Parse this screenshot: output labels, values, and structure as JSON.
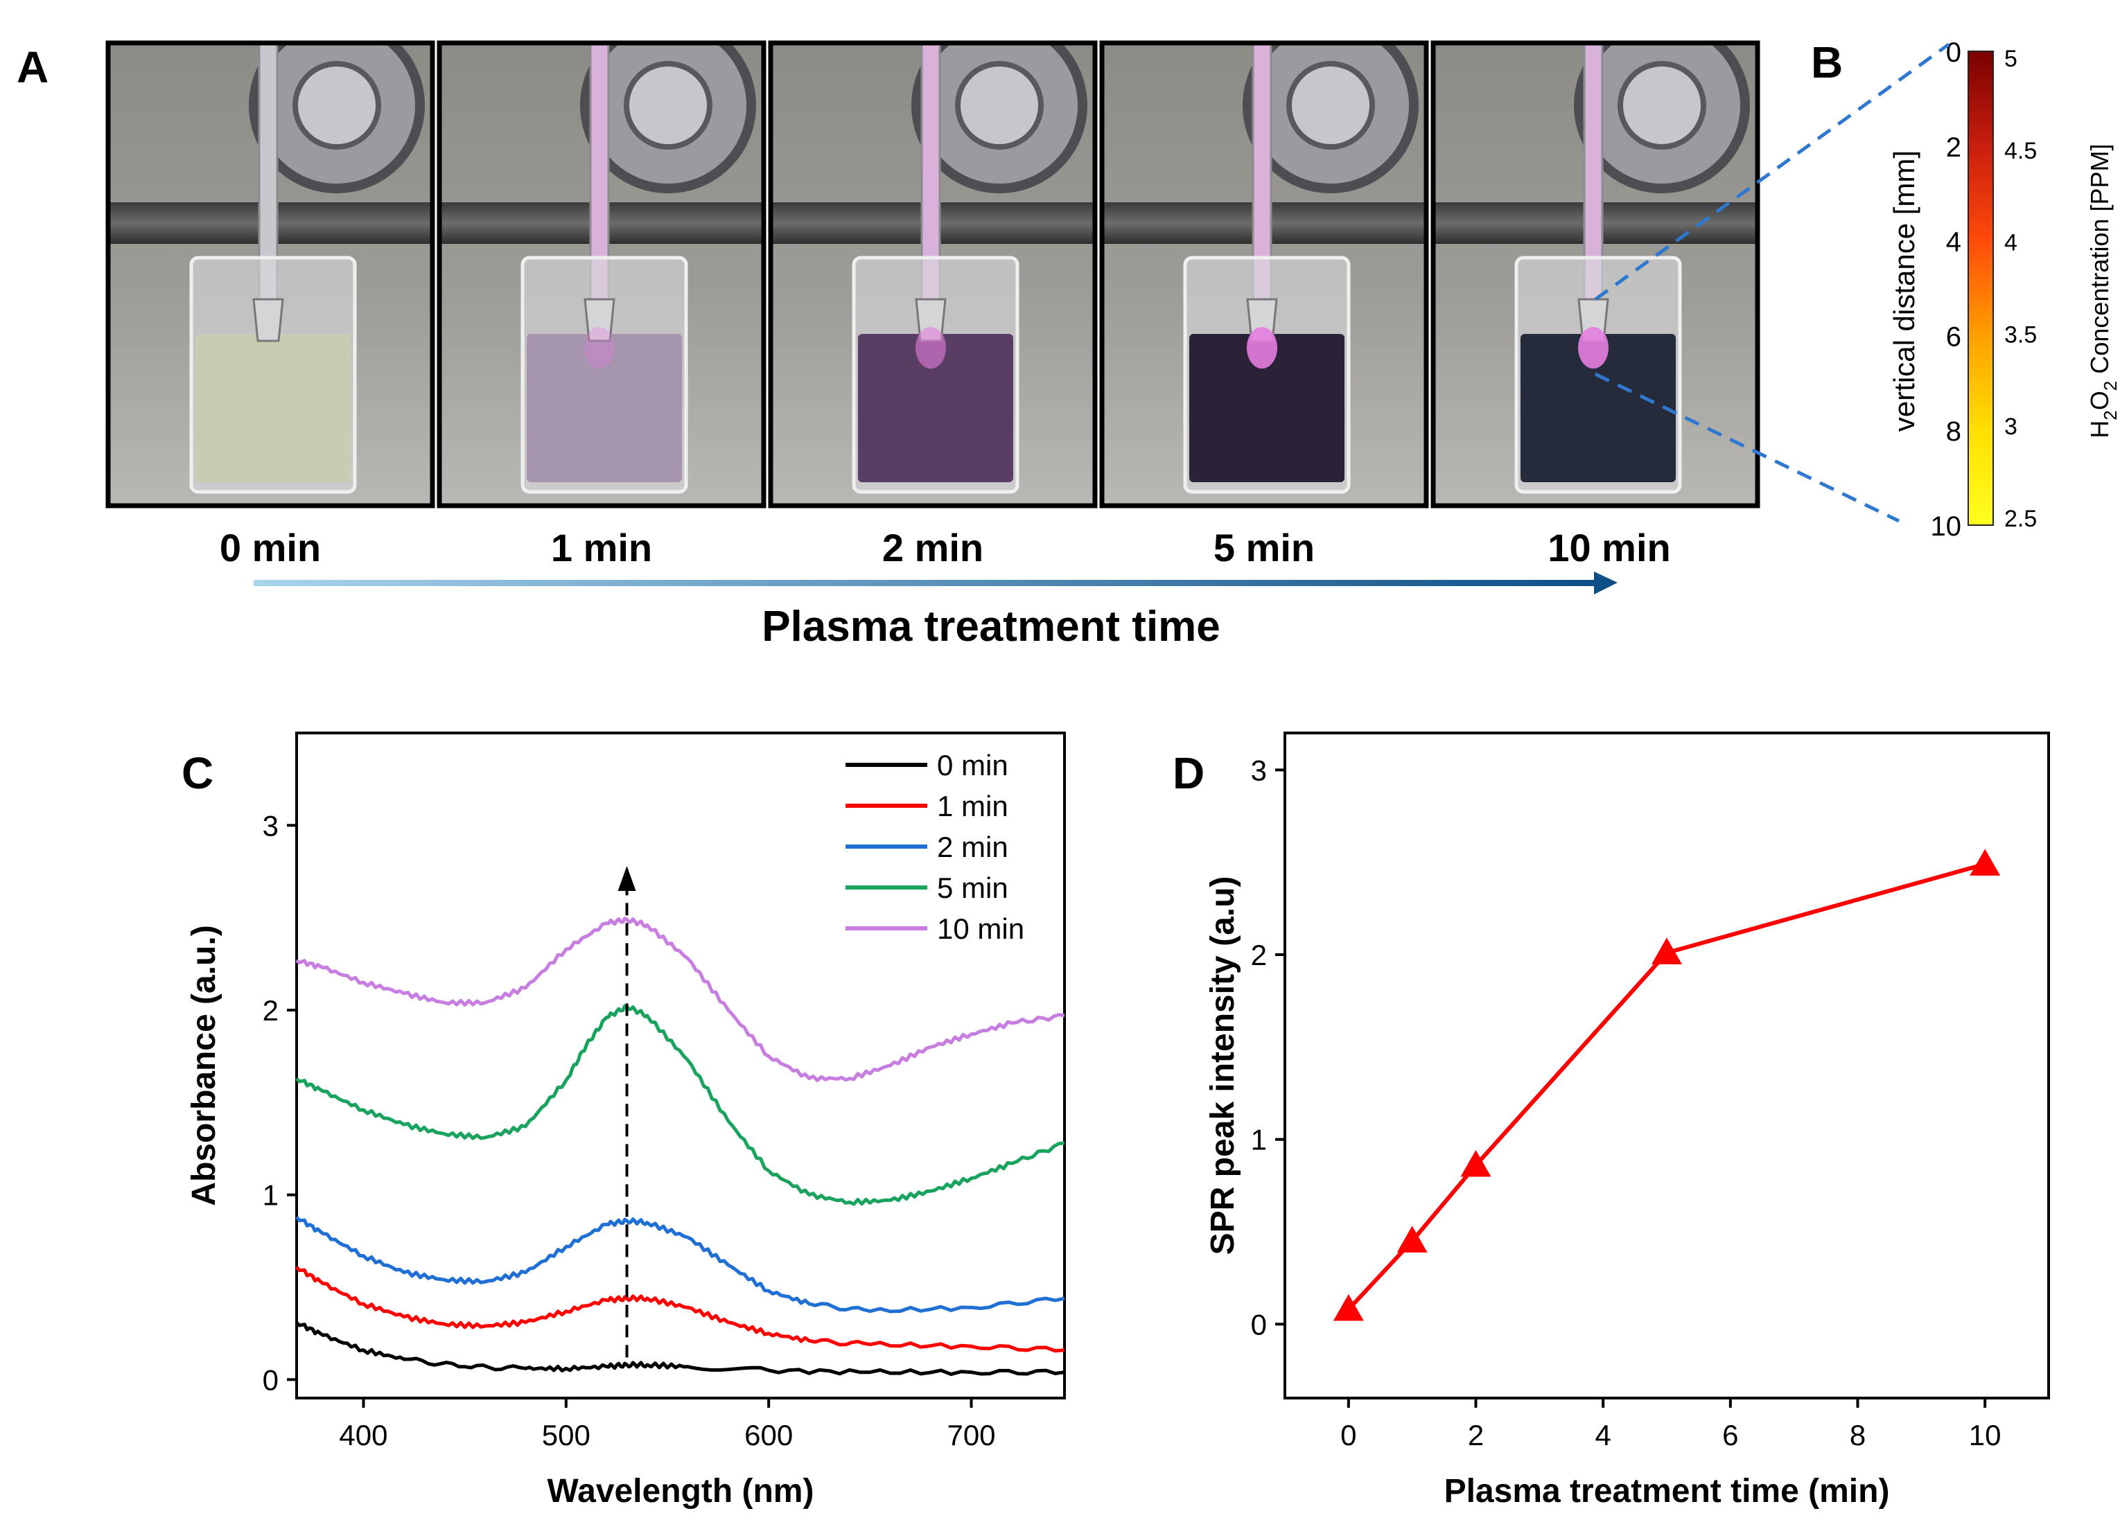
{
  "panels": {
    "a": "A",
    "b": "B",
    "c": "C",
    "d": "D"
  },
  "panel_a": {
    "photos": [
      {
        "time": "0 min",
        "liquid": "#c9cbb2",
        "glow": "none"
      },
      {
        "time": "1 min",
        "liquid": "#a596ad",
        "glow": "faint"
      },
      {
        "time": "2 min",
        "liquid": "#5a3d62",
        "glow": "medium"
      },
      {
        "time": "5 min",
        "liquid": "#2b2238",
        "glow": "strong"
      },
      {
        "time": "10 min",
        "liquid": "#252b3a",
        "glow": "strong"
      }
    ],
    "arrow_label": "Plasma treatment time",
    "arrow_color_start": "#a9d4ee",
    "arrow_color_end": "#0d4f86"
  },
  "panel_b": {
    "left_axis_label": "vertical distance  [mm]",
    "left_ticks": [
      "0",
      "2",
      "4",
      "6",
      "8",
      "10"
    ],
    "right_axis_label_parts": [
      "H",
      "2",
      "O",
      "2",
      " Concentration [PPM]"
    ],
    "right_ticks": [
      "5",
      "4.5",
      "4",
      "3.5",
      "3",
      "2.5"
    ],
    "colormap": [
      "#7a0000",
      "#c81e0e",
      "#ff4a0a",
      "#ffa000",
      "#ffe000",
      "#ffff20"
    ]
  },
  "chart_data": [
    {
      "type": "line",
      "panel": "C",
      "xlabel": "Wavelength (nm)",
      "ylabel": "Absorbance (a.u.)",
      "xlim": [
        367,
        746
      ],
      "ylim": [
        -0.1,
        3.5
      ],
      "xticks": [
        "400",
        "500",
        "600",
        "700"
      ],
      "xtick_values": [
        400,
        500,
        600,
        700
      ],
      "yticks": [
        "0",
        "1",
        "2",
        "3"
      ],
      "ytick_values": [
        0,
        1,
        2,
        3
      ],
      "legend_position": "top-right",
      "annotation": "dashed vertical arrow at ~530 nm pointing up",
      "annotation_x": 530,
      "annotation_y_from": 0.12,
      "annotation_y_to": 2.78,
      "series": [
        {
          "name": "0 min",
          "color": "#000000",
          "x": [
            367,
            380,
            400,
            420,
            450,
            480,
            500,
            520,
            530,
            540,
            560,
            600,
            650,
            700,
            746
          ],
          "y": [
            0.31,
            0.24,
            0.16,
            0.11,
            0.07,
            0.06,
            0.06,
            0.07,
            0.08,
            0.08,
            0.07,
            0.05,
            0.04,
            0.04,
            0.04
          ]
        },
        {
          "name": "1 min",
          "color": "#ff0000",
          "x": [
            367,
            380,
            400,
            420,
            440,
            460,
            480,
            500,
            520,
            530,
            540,
            560,
            580,
            600,
            620,
            650,
            700,
            746
          ],
          "y": [
            0.61,
            0.52,
            0.41,
            0.34,
            0.3,
            0.29,
            0.31,
            0.37,
            0.43,
            0.44,
            0.44,
            0.39,
            0.31,
            0.25,
            0.21,
            0.19,
            0.18,
            0.16
          ]
        },
        {
          "name": "2 min",
          "color": "#1f6fd4",
          "x": [
            367,
            380,
            400,
            420,
            440,
            460,
            480,
            500,
            520,
            530,
            540,
            560,
            580,
            600,
            620,
            650,
            700,
            746
          ],
          "y": [
            0.88,
            0.79,
            0.67,
            0.58,
            0.54,
            0.53,
            0.58,
            0.72,
            0.84,
            0.86,
            0.85,
            0.77,
            0.62,
            0.48,
            0.41,
            0.37,
            0.39,
            0.44
          ]
        },
        {
          "name": "5 min",
          "color": "#1aa35e",
          "x": [
            367,
            380,
            400,
            420,
            440,
            460,
            480,
            500,
            510,
            520,
            530,
            540,
            560,
            580,
            600,
            620,
            640,
            660,
            680,
            700,
            720,
            746
          ],
          "y": [
            1.63,
            1.56,
            1.46,
            1.38,
            1.33,
            1.31,
            1.37,
            1.62,
            1.81,
            1.96,
            2.02,
            1.97,
            1.73,
            1.4,
            1.13,
            1.0,
            0.96,
            0.97,
            1.02,
            1.09,
            1.17,
            1.28
          ]
        },
        {
          "name": "10 min",
          "color": "#c77ee0",
          "x": [
            367,
            380,
            400,
            420,
            440,
            460,
            480,
            500,
            520,
            530,
            540,
            560,
            580,
            600,
            620,
            640,
            660,
            680,
            700,
            720,
            746
          ],
          "y": [
            2.27,
            2.23,
            2.15,
            2.09,
            2.04,
            2.04,
            2.12,
            2.33,
            2.47,
            2.49,
            2.46,
            2.28,
            2.0,
            1.75,
            1.63,
            1.63,
            1.7,
            1.8,
            1.87,
            1.93,
            1.97
          ]
        }
      ]
    },
    {
      "type": "line",
      "panel": "D",
      "xlabel": "Plasma treatment time (min)",
      "ylabel": "SPR peak intensity (a.u)",
      "xlim": [
        -1,
        11
      ],
      "ylim": [
        -0.4,
        3.2
      ],
      "xticks": [
        "0",
        "2",
        "4",
        "6",
        "8",
        "10"
      ],
      "xtick_values": [
        0,
        2,
        4,
        6,
        8,
        10
      ],
      "yticks": [
        "0",
        "1",
        "2",
        "3"
      ],
      "ytick_values": [
        0,
        1,
        2,
        3
      ],
      "marker": "triangle",
      "color": "#ff0000",
      "series": [
        {
          "name": "SPR peak",
          "x": [
            0,
            1,
            2,
            5,
            10
          ],
          "y": [
            0.08,
            0.45,
            0.86,
            2.01,
            2.49
          ]
        }
      ]
    }
  ]
}
